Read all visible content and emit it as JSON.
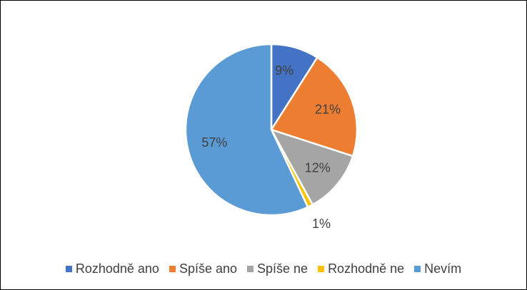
{
  "chart_data": {
    "type": "pie",
    "title": "",
    "legend_position": "bottom",
    "start_angle_deg": 0,
    "direction": "clockwise",
    "slices": [
      {
        "label": "Rozhodně ano",
        "value": 9,
        "display": "9%",
        "color": "#4472C4"
      },
      {
        "label": "Spíše ano",
        "value": 21,
        "display": "21%",
        "color": "#ED7D31"
      },
      {
        "label": "Spíše ne",
        "value": 12,
        "display": "12%",
        "color": "#A5A5A5"
      },
      {
        "label": "Rozhodně ne",
        "value": 1,
        "display": "1%",
        "color": "#FFC000"
      },
      {
        "label": "Nevím",
        "value": 57,
        "display": "57%",
        "color": "#5B9BD5"
      }
    ]
  }
}
